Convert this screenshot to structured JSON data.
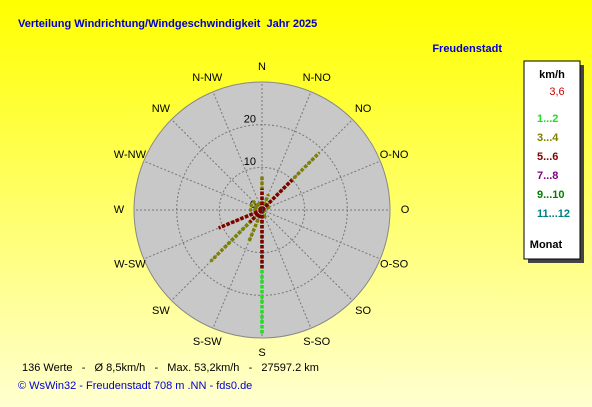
{
  "chart_data": {
    "type": "windrose",
    "title": "Verteilung Windrichtung/Windgeschwindigkeit  Jahr 2025",
    "subtitle": "Freudenstadt",
    "categories": [
      "N",
      "N-NO",
      "NO",
      "O-NO",
      "O",
      "O-SO",
      "SO",
      "S-SO",
      "S",
      "S-SW",
      "SW",
      "W-SW",
      "W",
      "W-NW",
      "NW",
      "N-NW"
    ],
    "rlim": [
      0,
      30
    ],
    "rticks": [
      0,
      10,
      20
    ],
    "series": [
      {
        "name": "1...2",
        "color": "#22dd22",
        "values": [
          2,
          1,
          3,
          2,
          1,
          1,
          1,
          1,
          29,
          3,
          12,
          4,
          2,
          1,
          1,
          1
        ]
      },
      {
        "name": "3...4",
        "color": "#808000",
        "values": [
          8,
          4,
          19,
          2,
          1,
          1,
          1,
          2,
          6,
          8,
          17,
          10,
          3,
          3,
          3,
          2
        ]
      },
      {
        "name": "5...6",
        "color": "#800000",
        "values": [
          5,
          1,
          10,
          1,
          0,
          0,
          0,
          0,
          14,
          2,
          4,
          11,
          1,
          1,
          1,
          0
        ]
      },
      {
        "name": "7...8",
        "color": "#800080",
        "values": [
          0,
          0,
          0,
          0,
          0,
          0,
          0,
          0,
          0,
          0,
          0,
          0,
          0,
          0,
          0,
          0
        ]
      },
      {
        "name": "9...10",
        "color": "#008000",
        "values": [
          0,
          0,
          0,
          0,
          0,
          0,
          0,
          0,
          0,
          0,
          0,
          0,
          0,
          0,
          0,
          0
        ]
      },
      {
        "name": "11...12",
        "color": "#008080",
        "values": [
          0,
          0,
          0,
          0,
          0,
          0,
          0,
          0,
          0,
          0,
          0,
          0,
          0,
          0,
          0,
          0
        ]
      }
    ],
    "legend_title": "km/h",
    "legend_note": "3,6",
    "legend_footer": "Monat",
    "stats": "136 Werte   -   Ø 8,5km/h   -   Max. 53,2km/h   -   27597.2 km",
    "credits": "© WsWin32  -  Freudenstadt 708 m  .NN  -  fds0.de"
  }
}
